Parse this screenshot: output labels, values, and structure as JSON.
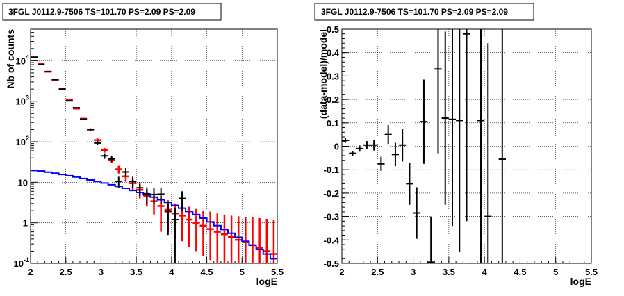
{
  "chart_data": [
    {
      "type": "scatter",
      "title": "3FGL J0112.9-7506 TS=101.70 PS=2.09 PS=2.09",
      "xlabel": "logE",
      "ylabel": "Nb of counts",
      "xlim": [
        2,
        5.5
      ],
      "ylim": [
        0.1,
        60000
      ],
      "yscale": "log",
      "grid": true,
      "x_ticks": [
        "2",
        "2.5",
        "3",
        "3.5",
        "4",
        "4.5",
        "5",
        "5.5"
      ],
      "y_ticks": [
        {
          "value": 0.1,
          "base": "10",
          "exp": "-1"
        },
        {
          "value": 1,
          "base": "1",
          "exp": ""
        },
        {
          "value": 10,
          "base": "10",
          "exp": ""
        },
        {
          "value": 100,
          "base": "10",
          "exp": "2"
        },
        {
          "value": 1000,
          "base": "10",
          "exp": "3"
        },
        {
          "value": 10000,
          "base": "10",
          "exp": "4"
        }
      ],
      "bin_width": 0.1,
      "series": [
        {
          "color": "#ff0000",
          "style": "errorbar",
          "points": [
            {
              "x": 2.05,
              "y": 12000,
              "lo": 11800,
              "hi": 12200
            },
            {
              "x": 2.15,
              "y": 8300,
              "lo": 8150,
              "hi": 8450
            },
            {
              "x": 2.25,
              "y": 5400,
              "lo": 5300,
              "hi": 5500
            },
            {
              "x": 2.35,
              "y": 3400,
              "lo": 3320,
              "hi": 3480
            },
            {
              "x": 2.45,
              "y": 2000,
              "lo": 1950,
              "hi": 2050
            },
            {
              "x": 2.55,
              "y": 1100,
              "lo": 1060,
              "hi": 1140
            },
            {
              "x": 2.65,
              "y": 660,
              "lo": 630,
              "hi": 690
            },
            {
              "x": 2.75,
              "y": 370,
              "lo": 350,
              "hi": 390
            },
            {
              "x": 2.85,
              "y": 200,
              "lo": 185,
              "hi": 215
            },
            {
              "x": 2.95,
              "y": 110,
              "lo": 99,
              "hi": 121
            },
            {
              "x": 3.05,
              "y": 62,
              "lo": 54,
              "hi": 70
            },
            {
              "x": 3.15,
              "y": 36,
              "lo": 30,
              "hi": 42
            },
            {
              "x": 3.25,
              "y": 21,
              "lo": 16.5,
              "hi": 25.5
            },
            {
              "x": 3.35,
              "y": 14,
              "lo": 10.3,
              "hi": 17.7
            },
            {
              "x": 3.45,
              "y": 9.5,
              "lo": 6.4,
              "hi": 12.6
            },
            {
              "x": 3.55,
              "y": 6.5,
              "lo": 4.0,
              "hi": 9.0
            },
            {
              "x": 3.65,
              "y": 4.6,
              "lo": 2.5,
              "hi": 6.7
            },
            {
              "x": 3.75,
              "y": 3.4,
              "lo": 1.6,
              "hi": 5.2
            },
            {
              "x": 3.85,
              "y": 2.6,
              "lo": 0.6,
              "hi": 4.6
            },
            {
              "x": 3.95,
              "y": 2.1,
              "lo": 0.6,
              "hi": 3.6
            },
            {
              "x": 4.05,
              "y": 1.7,
              "lo": 0.4,
              "hi": 3.0
            },
            {
              "x": 4.15,
              "y": 1.5,
              "lo": 0.35,
              "hi": 2.8
            },
            {
              "x": 4.25,
              "y": 1.2,
              "lo": 0.25,
              "hi": 2.5
            },
            {
              "x": 4.35,
              "y": 1.0,
              "lo": 0.2,
              "hi": 2.2
            },
            {
              "x": 4.45,
              "y": 0.85,
              "lo": 0.15,
              "hi": 2.0
            },
            {
              "x": 4.55,
              "y": 0.7,
              "lo": 0.12,
              "hi": 1.9
            },
            {
              "x": 4.65,
              "y": 0.6,
              "lo": 0.1,
              "hi": 1.7
            },
            {
              "x": 4.75,
              "y": 0.52,
              "lo": 0.1,
              "hi": 1.6
            },
            {
              "x": 4.85,
              "y": 0.45,
              "lo": 0.1,
              "hi": 1.5
            },
            {
              "x": 4.95,
              "y": 0.38,
              "lo": 0.1,
              "hi": 1.45
            },
            {
              "x": 5.05,
              "y": 0.33,
              "lo": 0.1,
              "hi": 1.4
            },
            {
              "x": 5.15,
              "y": 0.28,
              "lo": 0.1,
              "hi": 1.35
            },
            {
              "x": 5.25,
              "y": 0.24,
              "lo": 0.1,
              "hi": 1.3
            },
            {
              "x": 5.35,
              "y": 0.2,
              "lo": 0.1,
              "hi": 1.25
            },
            {
              "x": 5.45,
              "y": 0.17,
              "lo": 0.1,
              "hi": 1.2
            }
          ]
        },
        {
          "color": "#0000ff",
          "style": "step",
          "points": [
            {
              "x": 2.05,
              "y": 19.5
            },
            {
              "x": 2.15,
              "y": 19
            },
            {
              "x": 2.25,
              "y": 17.8
            },
            {
              "x": 2.35,
              "y": 16.8
            },
            {
              "x": 2.45,
              "y": 15.6
            },
            {
              "x": 2.55,
              "y": 14.5
            },
            {
              "x": 2.65,
              "y": 13.5
            },
            {
              "x": 2.75,
              "y": 12.4
            },
            {
              "x": 2.85,
              "y": 11.4
            },
            {
              "x": 2.95,
              "y": 10.5
            },
            {
              "x": 3.05,
              "y": 9.6
            },
            {
              "x": 3.15,
              "y": 8.7
            },
            {
              "x": 3.25,
              "y": 7.9
            },
            {
              "x": 3.35,
              "y": 7.1
            },
            {
              "x": 3.45,
              "y": 6.3
            },
            {
              "x": 3.55,
              "y": 5.6
            },
            {
              "x": 3.65,
              "y": 4.9
            },
            {
              "x": 3.75,
              "y": 4.3
            },
            {
              "x": 3.85,
              "y": 3.7
            },
            {
              "x": 3.95,
              "y": 3.2
            },
            {
              "x": 4.05,
              "y": 2.7
            },
            {
              "x": 4.15,
              "y": 2.3
            },
            {
              "x": 4.25,
              "y": 1.9
            },
            {
              "x": 4.35,
              "y": 1.6
            },
            {
              "x": 4.45,
              "y": 1.3
            },
            {
              "x": 4.55,
              "y": 1.05
            },
            {
              "x": 4.65,
              "y": 0.85
            },
            {
              "x": 4.75,
              "y": 0.68
            },
            {
              "x": 4.85,
              "y": 0.55
            },
            {
              "x": 4.95,
              "y": 0.44
            },
            {
              "x": 5.05,
              "y": 0.35
            },
            {
              "x": 5.15,
              "y": 0.28
            },
            {
              "x": 5.25,
              "y": 0.22
            },
            {
              "x": 5.35,
              "y": 0.17
            },
            {
              "x": 5.45,
              "y": 0.13
            }
          ]
        },
        {
          "color": "#000000",
          "style": "errorbar",
          "points": [
            {
              "x": 2.05,
              "y": 12300,
              "lo": 12190,
              "hi": 12410
            },
            {
              "x": 2.15,
              "y": 8050,
              "lo": 7960,
              "hi": 8140
            },
            {
              "x": 2.25,
              "y": 5350,
              "lo": 5280,
              "hi": 5420
            },
            {
              "x": 2.35,
              "y": 3420,
              "lo": 3360,
              "hi": 3480
            },
            {
              "x": 2.45,
              "y": 1990,
              "lo": 1945,
              "hi": 2035
            },
            {
              "x": 2.55,
              "y": 1020,
              "lo": 990,
              "hi": 1050
            },
            {
              "x": 2.65,
              "y": 690,
              "lo": 664,
              "hi": 716
            },
            {
              "x": 2.75,
              "y": 360,
              "lo": 341,
              "hi": 379
            },
            {
              "x": 2.85,
              "y": 200,
              "lo": 186,
              "hi": 214
            },
            {
              "x": 2.95,
              "y": 93,
              "lo": 83,
              "hi": 103
            },
            {
              "x": 3.05,
              "y": 45,
              "lo": 38,
              "hi": 52
            },
            {
              "x": 3.15,
              "y": 38,
              "lo": 32,
              "hi": 44
            },
            {
              "x": 3.25,
              "y": 10.5,
              "lo": 7.3,
              "hi": 13.7
            },
            {
              "x": 3.35,
              "y": 18,
              "lo": 13.8,
              "hi": 22.2
            },
            {
              "x": 3.45,
              "y": 10.5,
              "lo": 7.3,
              "hi": 13.7
            },
            {
              "x": 3.55,
              "y": 7.3,
              "lo": 4.6,
              "hi": 10.0
            },
            {
              "x": 3.65,
              "y": 5.2,
              "lo": 2.9,
              "hi": 7.5
            },
            {
              "x": 3.75,
              "y": 5.0,
              "lo": 2.8,
              "hi": 7.2
            },
            {
              "x": 3.85,
              "y": 5.1,
              "lo": 2.9,
              "hi": 7.3
            },
            {
              "x": 3.95,
              "y": 1.9,
              "lo": 0.5,
              "hi": 3.3
            },
            {
              "x": 4.05,
              "y": 1.2,
              "lo": 0.1,
              "hi": 2.3
            },
            {
              "x": 4.15,
              "y": 4.0,
              "lo": 2.0,
              "hi": 6.0
            }
          ]
        }
      ]
    },
    {
      "type": "scatter",
      "title": "3FGL J0112.9-7506 TS=101.70 PS=2.09 PS=2.09",
      "xlabel": "logE",
      "ylabel": "(data-model)/model",
      "xlim": [
        2,
        5.5
      ],
      "ylim": [
        -0.5,
        0.5
      ],
      "grid": true,
      "x_ticks": [
        "2",
        "2.5",
        "3",
        "3.5",
        "4",
        "4.5",
        "5",
        "5.5"
      ],
      "y_ticks": [
        "-0.5",
        "-0.4",
        "-0.3",
        "-0.2",
        "-0.1",
        "0",
        "0.1",
        "0.2",
        "0.3",
        "0.4",
        "0.5"
      ],
      "y_tick_values": [
        -0.5,
        -0.4,
        -0.3,
        -0.2,
        -0.1,
        0,
        0.1,
        0.2,
        0.3,
        0.4,
        0.5
      ],
      "bin_width": 0.1,
      "series": [
        {
          "color": "#000000",
          "style": "errorbar",
          "points": [
            {
              "x": 2.05,
              "y": 0.025,
              "lo": 0.015,
              "hi": 0.035
            },
            {
              "x": 2.15,
              "y": -0.03,
              "lo": -0.04,
              "hi": -0.02
            },
            {
              "x": 2.25,
              "y": -0.01,
              "lo": -0.023,
              "hi": 0.003
            },
            {
              "x": 2.35,
              "y": 0.005,
              "lo": -0.012,
              "hi": 0.022
            },
            {
              "x": 2.45,
              "y": 0.005,
              "lo": -0.018,
              "hi": 0.028
            },
            {
              "x": 2.55,
              "y": -0.075,
              "lo": -0.105,
              "hi": -0.045
            },
            {
              "x": 2.65,
              "y": 0.05,
              "lo": 0.01,
              "hi": 0.09
            },
            {
              "x": 2.75,
              "y": -0.035,
              "lo": -0.085,
              "hi": 0.015
            },
            {
              "x": 2.85,
              "y": 0.005,
              "lo": -0.065,
              "hi": 0.075
            },
            {
              "x": 2.95,
              "y": -0.16,
              "lo": -0.25,
              "hi": -0.07
            },
            {
              "x": 3.05,
              "y": -0.285,
              "lo": -0.395,
              "hi": -0.175
            },
            {
              "x": 3.15,
              "y": 0.105,
              "lo": -0.075,
              "hi": 0.285
            },
            {
              "x": 3.25,
              "y": -0.495,
              "lo": -0.7,
              "hi": -0.3
            },
            {
              "x": 3.35,
              "y": 0.33,
              "lo": -0.03,
              "hi": 0.69
            },
            {
              "x": 3.45,
              "y": 0.12,
              "lo": -0.25,
              "hi": 0.49
            },
            {
              "x": 3.55,
              "y": 0.115,
              "lo": -0.34,
              "hi": 0.57
            },
            {
              "x": 3.65,
              "y": 0.11,
              "lo": -0.45,
              "hi": 0.67
            },
            {
              "x": 3.75,
              "y": 0.48,
              "lo": -0.32,
              "hi": 1.28
            },
            {
              "x": 3.95,
              "y": 0.11,
              "lo": -0.65,
              "hi": 0.87
            },
            {
              "x": 4.05,
              "y": -0.3,
              "lo": -0.95,
              "hi": 0.44
            },
            {
              "x": 4.25,
              "y": -0.055,
              "lo": -0.75,
              "hi": 0.64
            }
          ]
        }
      ]
    }
  ]
}
